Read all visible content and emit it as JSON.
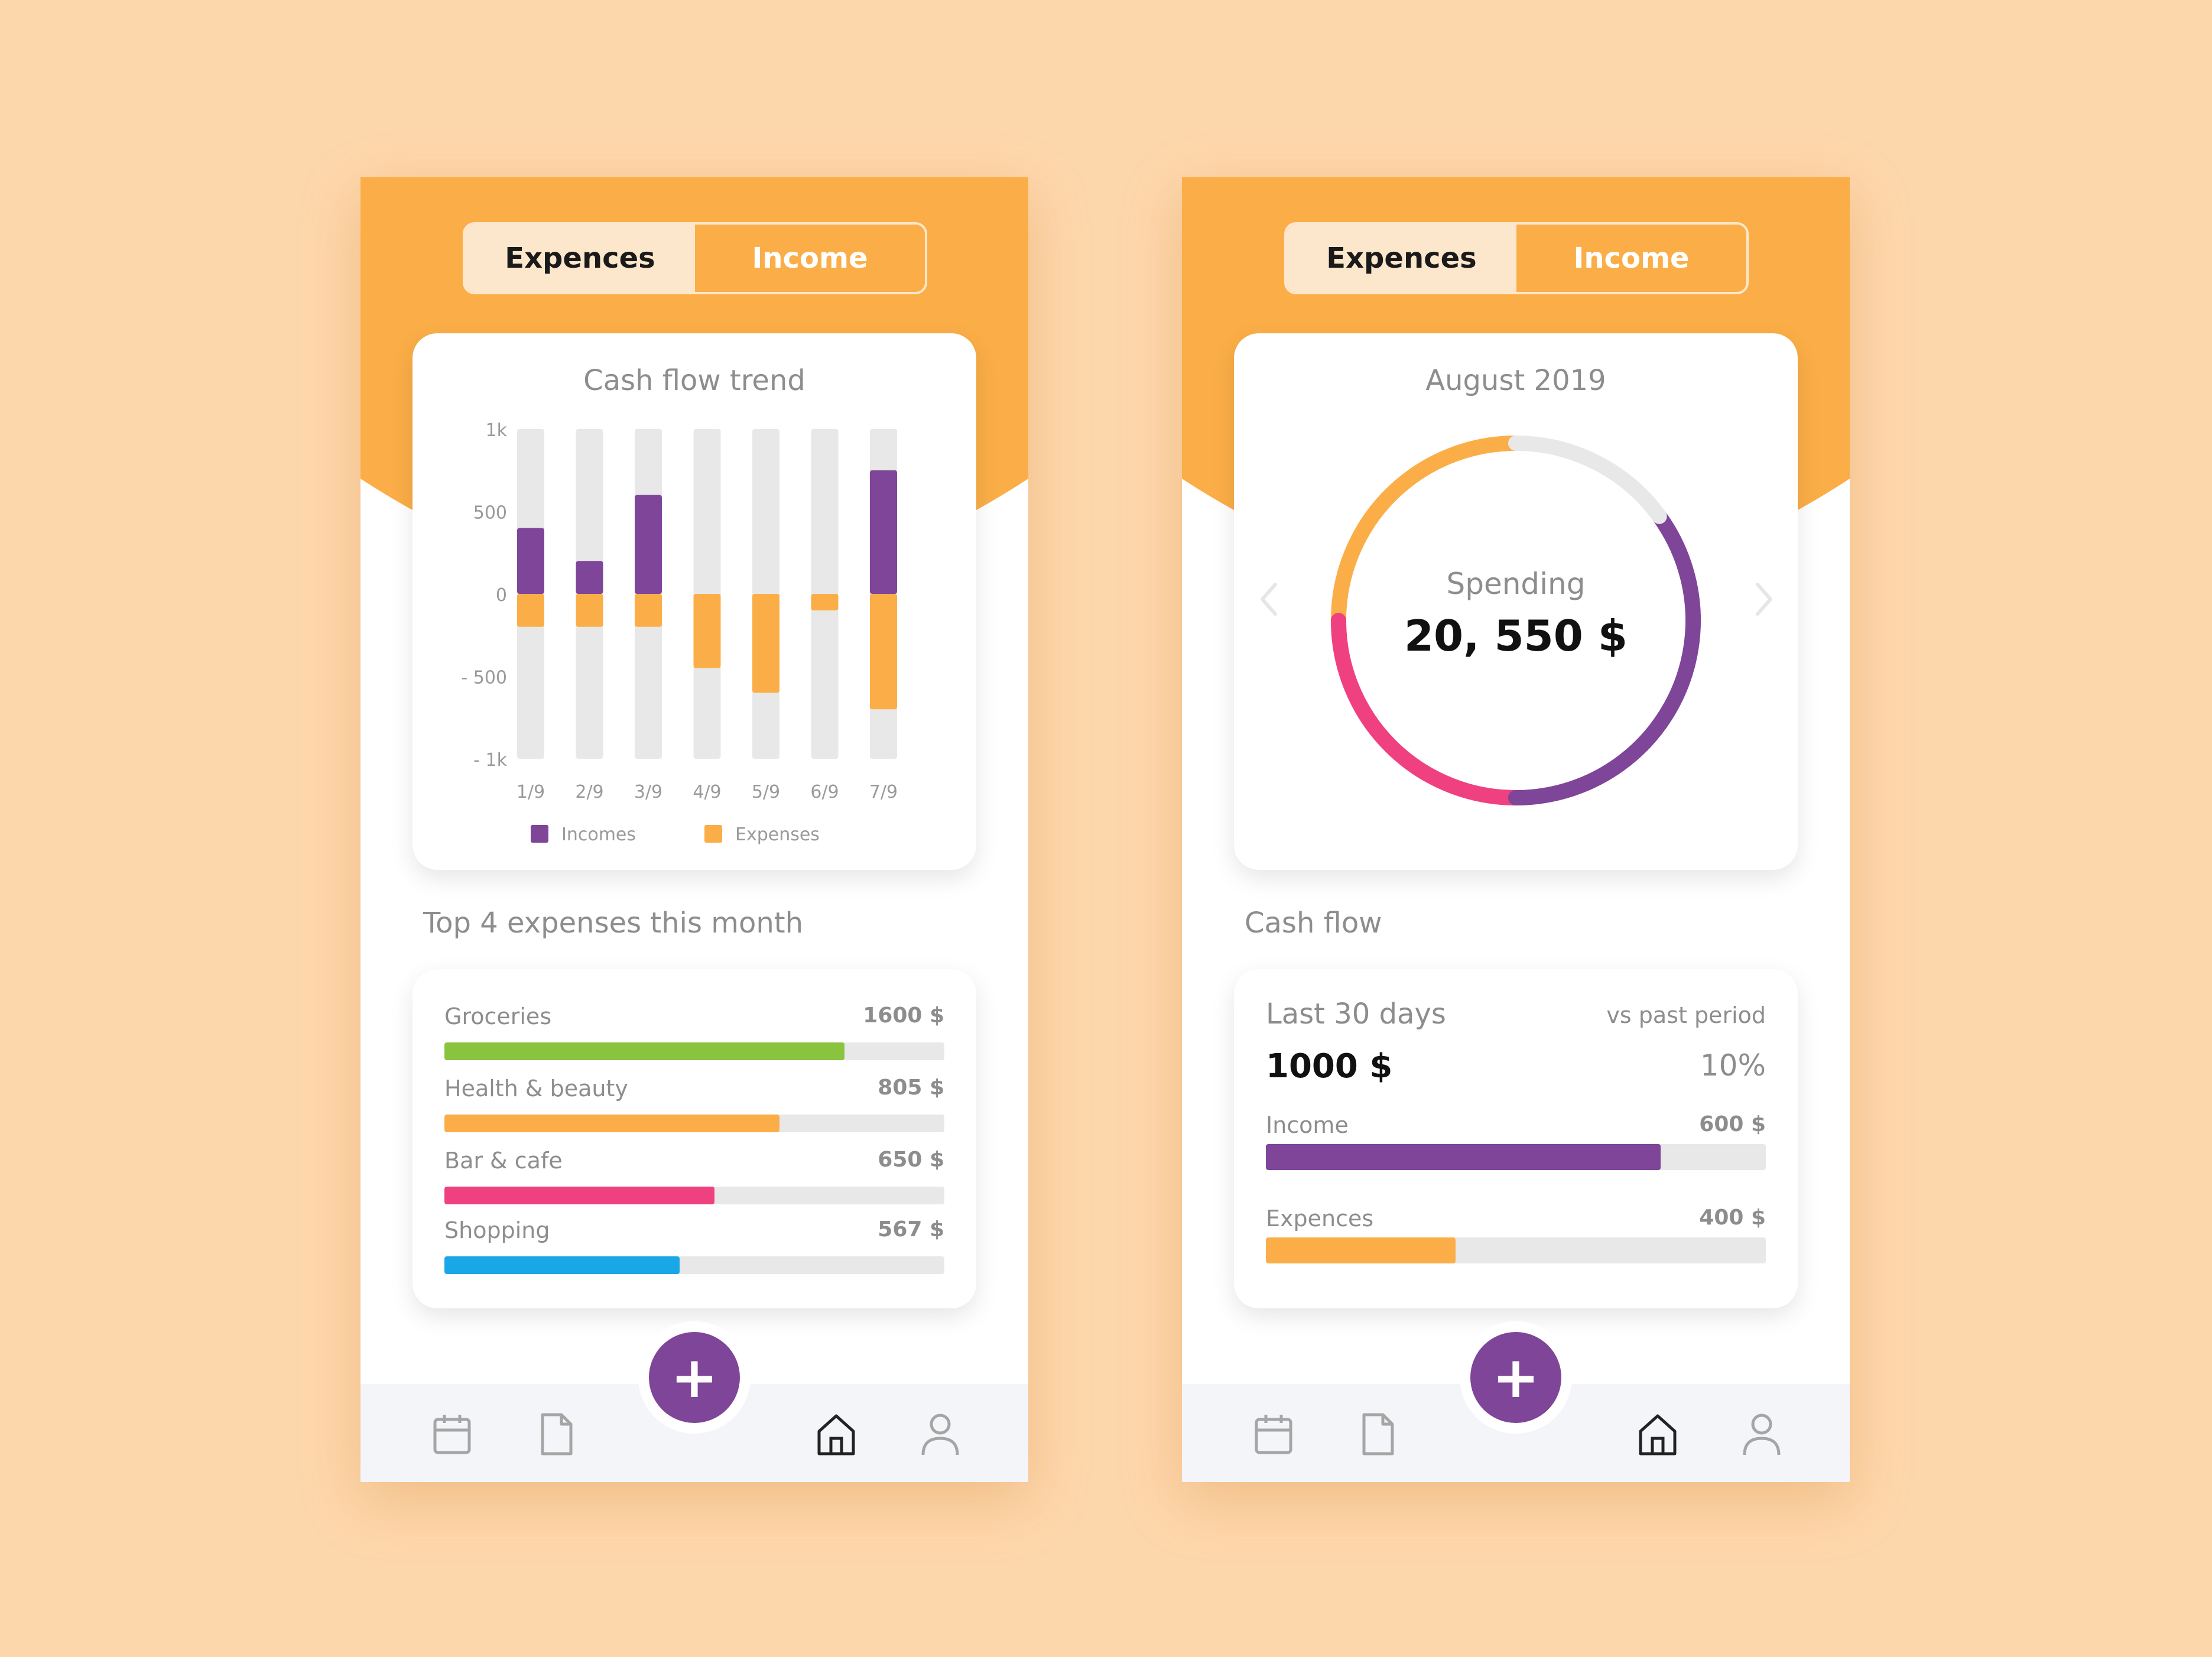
{
  "colors": {
    "orange": "#fbae47",
    "purple": "#7e4599",
    "pink": "#ef4080",
    "green": "#8ac43f",
    "blue": "#1aa7e8",
    "track": "#e8e8e8",
    "text_gray": "#8d8d8d"
  },
  "left": {
    "tabs": {
      "expences": "Expences",
      "income": "Income"
    },
    "chart_title": "Cash flow trend",
    "section_title": "Top 4 expenses this month",
    "expenses": [
      {
        "label": "Groceries",
        "value": "1600 $",
        "fraction": 0.8,
        "color": "#8ac43f"
      },
      {
        "label": "Health & beauty",
        "value": "805 $",
        "fraction": 0.67,
        "color": "#fbae47"
      },
      {
        "label": "Bar & cafe",
        "value": "650 $",
        "fraction": 0.54,
        "color": "#ef4080"
      },
      {
        "label": "Shopping",
        "value": "567 $",
        "fraction": 0.47,
        "color": "#1aa7e8"
      }
    ],
    "fab_label": "+"
  },
  "right": {
    "tabs": {
      "expences": "Expences",
      "income": "Income"
    },
    "donut_title": "August 2019",
    "donut_label": "Spending",
    "donut_value": "20, 550 $",
    "donut_segments": [
      {
        "color": "#fbae47",
        "fraction": 0.25
      },
      {
        "color": "#ef4080",
        "fraction": 0.25
      },
      {
        "color": "#7e4599",
        "fraction": 0.35
      },
      {
        "color": "#e8e8e8",
        "fraction": 0.15
      }
    ],
    "section_title": "Cash flow",
    "cashflow": {
      "period": "Last 30 days",
      "vs": "vs past period",
      "total": "1000 $",
      "pct": "10%",
      "rows": [
        {
          "label": "Income",
          "value": "600 $",
          "fraction": 0.79,
          "color": "#7e4599"
        },
        {
          "label": "Expences",
          "value": "400 $",
          "fraction": 0.38,
          "color": "#fbae47"
        }
      ]
    },
    "fab_label": "+"
  },
  "chart_data": {
    "type": "bar",
    "title": "Cash flow trend",
    "categories": [
      "1/9",
      "2/9",
      "3/9",
      "4/9",
      "5/9",
      "6/9",
      "7/9"
    ],
    "ylim": [
      -1000,
      1000
    ],
    "yticks": [
      {
        "value": 1000,
        "label": "1k"
      },
      {
        "value": 500,
        "label": "500"
      },
      {
        "value": 0,
        "label": "0"
      },
      {
        "value": -500,
        "label": "- 500"
      },
      {
        "value": -1000,
        "label": "- 1k"
      }
    ],
    "series": [
      {
        "name": "Incomes",
        "color": "#7e4599",
        "values": [
          400,
          200,
          600,
          0,
          0,
          0,
          750
        ]
      },
      {
        "name": "Expenses",
        "color": "#fbae47",
        "values": [
          -200,
          -200,
          -200,
          -450,
          -600,
          -100,
          -700
        ]
      }
    ],
    "legend": "bottom"
  }
}
